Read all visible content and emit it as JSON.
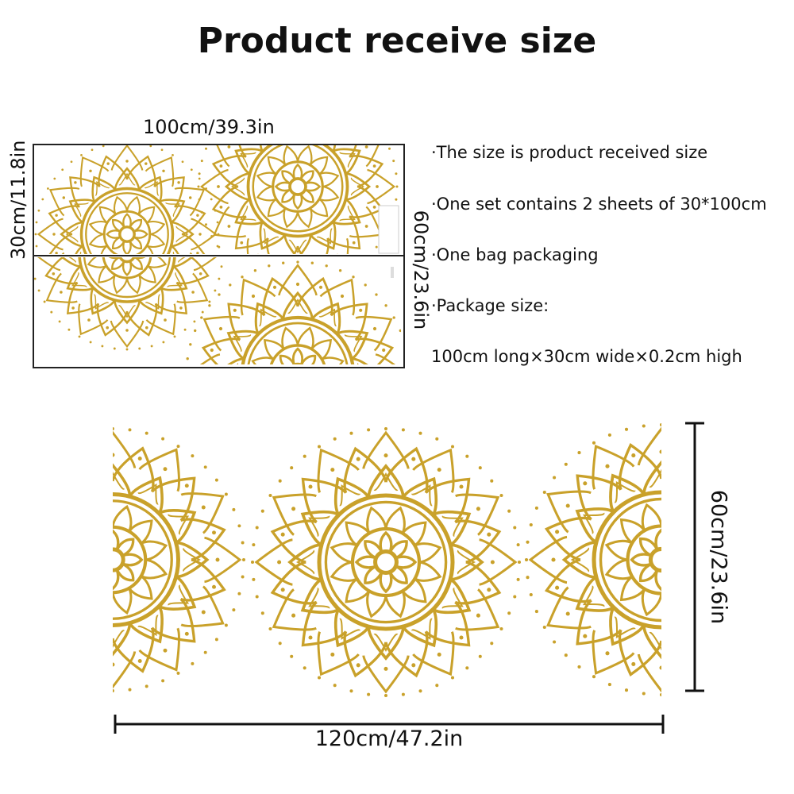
{
  "title": "Product receive size",
  "top_diagram": {
    "width_label": "100cm/39.3in",
    "sheet_height_label": "30cm/11.8in",
    "total_height_label": "60cm/23.6in"
  },
  "bullets": [
    "·The size is product received size",
    "·One set contains 2 sheets of 30*100cm",
    "·One bag packaging",
    "·Package size:",
    "100cm long×30cm wide×0.2cm high"
  ],
  "bottom_diagram": {
    "width_label": "120cm/47.2in",
    "height_label": "60cm/23.6in"
  },
  "colors": {
    "gold": "#c9a12a",
    "line": "#111111"
  }
}
